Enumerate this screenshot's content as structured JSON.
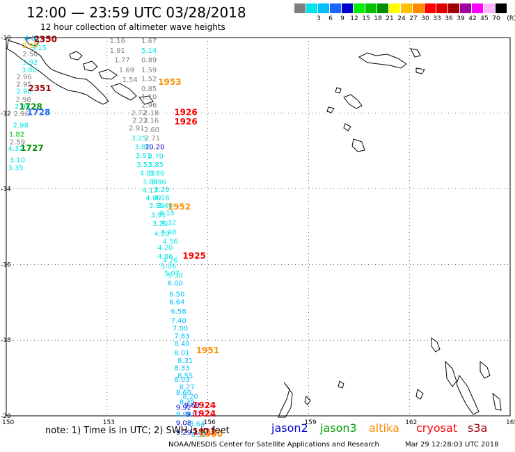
{
  "title": "12:00 — 23:59 UTC 03/28/2018",
  "subtitle": "12 hour collection of altimeter wave heights",
  "legend": {
    "unit": "(ft)",
    "bins": [
      {
        "color": "#7f7f7f",
        "label": ""
      },
      {
        "color": "#00e5e5",
        "label": "3"
      },
      {
        "color": "#00bfff",
        "label": "6"
      },
      {
        "color": "#1e64ff",
        "label": "9"
      },
      {
        "color": "#0000cd",
        "label": "12"
      },
      {
        "color": "#00ee00",
        "label": "15"
      },
      {
        "color": "#00c000",
        "label": "18"
      },
      {
        "color": "#009000",
        "label": "21"
      },
      {
        "color": "#ffff00",
        "label": "24"
      },
      {
        "color": "#ffc000",
        "label": "27"
      },
      {
        "color": "#ff8c00",
        "label": "30"
      },
      {
        "color": "#ff0000",
        "label": "33"
      },
      {
        "color": "#dc0000",
        "label": "36"
      },
      {
        "color": "#a00000",
        "label": "39"
      },
      {
        "color": "#a000a0",
        "label": "42"
      },
      {
        "color": "#ff00ff",
        "label": "45"
      },
      {
        "color": "#ffb4ff",
        "label": "70"
      },
      {
        "color": "#000000",
        "label": ""
      }
    ]
  },
  "axes": {
    "lon_ticks": [
      "150",
      "153",
      "156",
      "159",
      "162",
      "165"
    ],
    "lat_ticks": [
      "-10",
      "-12",
      "-14",
      "-16",
      "-18",
      "-20"
    ]
  },
  "wave_points": [
    {
      "text": "4.02",
      "color": "#00bfff",
      "lon": 150.54,
      "lat": -10.08
    },
    {
      "text": "2.95",
      "color": "#ffc000",
      "lon": 150.48,
      "lat": -10.28
    },
    {
      "text": "3.15",
      "color": "#00e5e5",
      "lon": 150.74,
      "lat": -10.33
    },
    {
      "text": "2.50",
      "color": "#7f7f7f",
      "lon": 150.48,
      "lat": -10.5
    },
    {
      "text": "3.92",
      "color": "#00e5e5",
      "lon": 150.48,
      "lat": -10.72
    },
    {
      "text": "3.80",
      "color": "#00e5e5",
      "lon": 150.45,
      "lat": -10.92
    },
    {
      "text": "2.96",
      "color": "#7f7f7f",
      "lon": 150.3,
      "lat": -11.1
    },
    {
      "text": "2.95",
      "color": "#7f7f7f",
      "lon": 150.3,
      "lat": -11.3
    },
    {
      "text": "2.98",
      "color": "#00e5e5",
      "lon": 150.3,
      "lat": -11.48
    },
    {
      "text": "2.98",
      "color": "#7f7f7f",
      "lon": 150.28,
      "lat": -11.7
    },
    {
      "text": "2.95",
      "color": "#00e5e5",
      "lon": 150.25,
      "lat": -11.88
    },
    {
      "text": "2.96",
      "color": "#7f7f7f",
      "lon": 150.22,
      "lat": -12.08
    },
    {
      "text": "2.98",
      "color": "#00e5e5",
      "lon": 150.2,
      "lat": -12.38
    },
    {
      "text": "1.82",
      "color": "#00c000",
      "lon": 150.08,
      "lat": -12.62
    },
    {
      "text": "2.59",
      "color": "#7f7f7f",
      "lon": 150.1,
      "lat": -12.82
    },
    {
      "text": "4.32",
      "color": "#00e5e5",
      "lon": 150.05,
      "lat": -13.0
    },
    {
      "text": "3.10",
      "color": "#00e5e5",
      "lon": 150.1,
      "lat": -13.3
    },
    {
      "text": "3.35",
      "color": "#00e5e5",
      "lon": 150.05,
      "lat": -13.5
    },
    {
      "text": "1.16",
      "color": "#7f7f7f",
      "lon": 153.08,
      "lat": -10.15
    },
    {
      "text": "1.91",
      "color": "#7f7f7f",
      "lon": 153.08,
      "lat": -10.4
    },
    {
      "text": "1.77",
      "color": "#7f7f7f",
      "lon": 153.22,
      "lat": -10.65
    },
    {
      "text": "1.69",
      "color": "#7f7f7f",
      "lon": 153.35,
      "lat": -10.92
    },
    {
      "text": "1.54",
      "color": "#7f7f7f",
      "lon": 153.45,
      "lat": -11.18
    },
    {
      "text": "1.67",
      "color": "#7f7f7f",
      "lon": 154.02,
      "lat": -10.15
    },
    {
      "text": "5.14",
      "color": "#00e5e5",
      "lon": 154.02,
      "lat": -10.4
    },
    {
      "text": "0.89",
      "color": "#7f7f7f",
      "lon": 154.02,
      "lat": -10.65
    },
    {
      "text": "1.59",
      "color": "#7f7f7f",
      "lon": 154.02,
      "lat": -10.92
    },
    {
      "text": "1.52",
      "color": "#7f7f7f",
      "lon": 154.02,
      "lat": -11.15
    },
    {
      "text": "0.85",
      "color": "#7f7f7f",
      "lon": 154.02,
      "lat": -11.42
    },
    {
      "text": "1.10",
      "color": "#7f7f7f",
      "lon": 154.02,
      "lat": -11.63
    },
    {
      "text": "2.96",
      "color": "#7f7f7f",
      "lon": 154.02,
      "lat": -11.85
    },
    {
      "text": "2.72",
      "color": "#7f7f7f",
      "lon": 153.72,
      "lat": -12.05
    },
    {
      "text": "2.18",
      "color": "#7f7f7f",
      "lon": 154.08,
      "lat": -12.05
    },
    {
      "text": "2.23",
      "color": "#7f7f7f",
      "lon": 153.75,
      "lat": -12.25
    },
    {
      "text": "2.16",
      "color": "#7f7f7f",
      "lon": 154.08,
      "lat": -12.25
    },
    {
      "text": "2.91",
      "color": "#7f7f7f",
      "lon": 153.65,
      "lat": -12.45
    },
    {
      "text": "2.60",
      "color": "#7f7f7f",
      "lon": 154.1,
      "lat": -12.5
    },
    {
      "text": "2.71",
      "color": "#7f7f7f",
      "lon": 154.12,
      "lat": -12.72
    },
    {
      "text": "3.25",
      "color": "#00e5e5",
      "lon": 153.72,
      "lat": -12.72
    },
    {
      "text": "3.87",
      "color": "#00e5e5",
      "lon": 153.82,
      "lat": -12.95
    },
    {
      "text": "10.20",
      "color": "#0000cd",
      "lon": 154.12,
      "lat": -12.95
    },
    {
      "text": "3.91",
      "color": "#00e5e5",
      "lon": 153.85,
      "lat": -13.18
    },
    {
      "text": "3.70",
      "color": "#00e5e5",
      "lon": 154.22,
      "lat": -13.2
    },
    {
      "text": "3.53",
      "color": "#00e5e5",
      "lon": 153.88,
      "lat": -13.42
    },
    {
      "text": "3.85",
      "color": "#00e5e5",
      "lon": 154.22,
      "lat": -13.42
    },
    {
      "text": "4.02",
      "color": "#00e5e5",
      "lon": 153.97,
      "lat": -13.65
    },
    {
      "text": "3.86",
      "color": "#00e5e5",
      "lon": 154.25,
      "lat": -13.65
    },
    {
      "text": "3.84",
      "color": "#00e5e5",
      "lon": 154.05,
      "lat": -13.88
    },
    {
      "text": "3.96",
      "color": "#00e5e5",
      "lon": 154.3,
      "lat": -13.88
    },
    {
      "text": "4.17",
      "color": "#00e5e5",
      "lon": 154.05,
      "lat": -14.1
    },
    {
      "text": "3.29",
      "color": "#00e5e5",
      "lon": 154.4,
      "lat": -14.08
    },
    {
      "text": "4.09",
      "color": "#00e5e5",
      "lon": 154.15,
      "lat": -14.3
    },
    {
      "text": "4.18",
      "color": "#00e5e5",
      "lon": 154.4,
      "lat": -14.3
    },
    {
      "text": "3.99",
      "color": "#00e5e5",
      "lon": 154.25,
      "lat": -14.5
    },
    {
      "text": "3.40",
      "color": "#00e5e5",
      "lon": 154.5,
      "lat": -14.5
    },
    {
      "text": "3.91",
      "color": "#00e5e5",
      "lon": 154.3,
      "lat": -14.75
    },
    {
      "text": "4.15",
      "color": "#00e5e5",
      "lon": 154.55,
      "lat": -14.7
    },
    {
      "text": "3.20",
      "color": "#00e5e5",
      "lon": 154.35,
      "lat": -14.98
    },
    {
      "text": "4.32",
      "color": "#00e5e5",
      "lon": 154.6,
      "lat": -14.95
    },
    {
      "text": "4.20",
      "color": "#00e5e5",
      "lon": 154.4,
      "lat": -15.25
    },
    {
      "text": "4.48",
      "color": "#00e5e5",
      "lon": 154.6,
      "lat": -15.2
    },
    {
      "text": "4.56",
      "color": "#00e5e5",
      "lon": 154.65,
      "lat": -15.45
    },
    {
      "text": "4.20",
      "color": "#00e5e5",
      "lon": 154.5,
      "lat": -15.62
    },
    {
      "text": "4.86",
      "color": "#00e5e5",
      "lon": 154.5,
      "lat": -15.85
    },
    {
      "text": "4.26",
      "color": "#00e5e5",
      "lon": 154.65,
      "lat": -15.95
    },
    {
      "text": "5.06",
      "color": "#00e5e5",
      "lon": 154.6,
      "lat": -16.1
    },
    {
      "text": "5.07",
      "color": "#00e5e5",
      "lon": 154.7,
      "lat": -16.3
    },
    {
      "text": "5.30",
      "color": "#00e5e5",
      "lon": 154.8,
      "lat": -16.35
    },
    {
      "text": "6.00",
      "color": "#00bfff",
      "lon": 154.8,
      "lat": -16.55
    },
    {
      "text": "6.50",
      "color": "#00bfff",
      "lon": 154.85,
      "lat": -16.85
    },
    {
      "text": "6.64",
      "color": "#00bfff",
      "lon": 154.85,
      "lat": -17.05
    },
    {
      "text": "6.58",
      "color": "#00bfff",
      "lon": 154.9,
      "lat": -17.3
    },
    {
      "text": "7.40",
      "color": "#00bfff",
      "lon": 154.9,
      "lat": -17.55
    },
    {
      "text": "7.00",
      "color": "#00bfff",
      "lon": 154.95,
      "lat": -17.75
    },
    {
      "text": "7.83",
      "color": "#00bfff",
      "lon": 155.0,
      "lat": -17.95
    },
    {
      "text": "8.40",
      "color": "#00bfff",
      "lon": 155.0,
      "lat": -18.15
    },
    {
      "text": "8.01",
      "color": "#00bfff",
      "lon": 155.0,
      "lat": -18.4
    },
    {
      "text": "8.31",
      "color": "#00bfff",
      "lon": 155.1,
      "lat": -18.6
    },
    {
      "text": "8.33",
      "color": "#00bfff",
      "lon": 155.0,
      "lat": -18.8
    },
    {
      "text": "8.55",
      "color": "#00bfff",
      "lon": 155.1,
      "lat": -19.0
    },
    {
      "text": "8.03",
      "color": "#00bfff",
      "lon": 155.0,
      "lat": -19.1
    },
    {
      "text": "8.27",
      "color": "#00bfff",
      "lon": 155.15,
      "lat": -19.3
    },
    {
      "text": "8.60",
      "color": "#00bfff",
      "lon": 155.05,
      "lat": -19.45
    },
    {
      "text": "8.20",
      "color": "#00bfff",
      "lon": 155.25,
      "lat": -19.55
    },
    {
      "text": "8.30",
      "color": "#00bfff",
      "lon": 155.15,
      "lat": -19.7
    },
    {
      "text": "9.63",
      "color": "#0000cd",
      "lon": 155.3,
      "lat": -19.78
    },
    {
      "text": "9.92",
      "color": "#0000cd",
      "lon": 155.05,
      "lat": -19.83
    },
    {
      "text": "8.98",
      "color": "#00bfff",
      "lon": 155.05,
      "lat": -20.02
    },
    {
      "text": "9.07",
      "color": "#0000cd",
      "lon": 155.35,
      "lat": -20.02
    },
    {
      "text": "9.08",
      "color": "#0000cd",
      "lon": 155.05,
      "lat": -20.25
    },
    {
      "text": "8.64",
      "color": "#00bfff",
      "lon": 155.45,
      "lat": -20.28
    },
    {
      "text": "9.29",
      "color": "#0000cd",
      "lon": 155.05,
      "lat": -20.5
    },
    {
      "text": "8.54",
      "color": "#00bfff",
      "lon": 155.5,
      "lat": -20.55
    }
  ],
  "pass_times": [
    {
      "text": "2350",
      "color": "#a00000",
      "lon": 150.82,
      "lat": -10.12
    },
    {
      "text": "2351",
      "color": "#a00000",
      "lon": 150.65,
      "lat": -11.42
    },
    {
      "text": "1728",
      "color": "#009000",
      "lon": 150.38,
      "lat": -11.9
    },
    {
      "text": "1728",
      "color": "#1e64ff",
      "lon": 150.62,
      "lat": -12.05
    },
    {
      "text": "1727",
      "color": "#009000",
      "lon": 150.42,
      "lat": -13.0
    },
    {
      "text": "1953",
      "color": "#ff8c00",
      "lon": 154.52,
      "lat": -11.25
    },
    {
      "text": "1926",
      "color": "#ff0000",
      "lon": 155.0,
      "lat": -12.05
    },
    {
      "text": "1926",
      "color": "#ff0000",
      "lon": 155.0,
      "lat": -12.3
    },
    {
      "text": "1952",
      "color": "#ff8c00",
      "lon": 154.8,
      "lat": -14.55
    },
    {
      "text": "1925",
      "color": "#ff0000",
      "lon": 155.25,
      "lat": -15.85
    },
    {
      "text": "1951",
      "color": "#ff8c00",
      "lon": 155.65,
      "lat": -18.35
    },
    {
      "text": "1924",
      "color": "#ff0000",
      "lon": 155.55,
      "lat": -19.8
    },
    {
      "text": "1924",
      "color": "#ff0000",
      "lon": 155.55,
      "lat": -20.02
    },
    {
      "text": "1923",
      "color": "#ff0000",
      "lon": 155.55,
      "lat": -20.5
    },
    {
      "text": "1950",
      "color": "#ff8c00",
      "lon": 155.75,
      "lat": -20.55
    }
  ],
  "footer": {
    "note": "note:  1) Time is in UTC; 2) SWH is in feet",
    "satellites": [
      {
        "name": "jason2",
        "color": "#0000cd"
      },
      {
        "name": "jason3",
        "color": "#00a000"
      },
      {
        "name": "altika",
        "color": "#ff8c00"
      },
      {
        "name": "cryosat",
        "color": "#ff0000"
      },
      {
        "name": "s3a",
        "color": "#a00000"
      }
    ],
    "credit": "NOAA/NESDIS Center for Satellite Applications and Research",
    "timestamp": "Mar 29 12:28:03 UTC 2018"
  }
}
